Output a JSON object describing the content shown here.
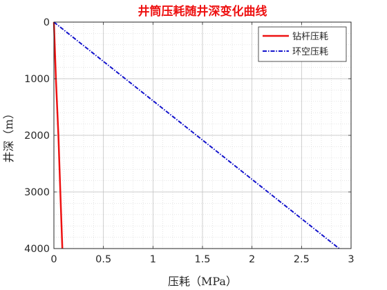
{
  "chart_data": {
    "type": "line",
    "title": "井筒压耗随井深变化曲线",
    "xlabel": "压耗（MPa）",
    "ylabel": "井深（m）",
    "xlim": [
      0,
      3
    ],
    "ylim": [
      0,
      4000
    ],
    "y_reversed": true,
    "x_ticks": [
      "0",
      "0.5",
      "1",
      "1.5",
      "2",
      "2.5",
      "3"
    ],
    "y_ticks": [
      "0",
      "1000",
      "2000",
      "3000",
      "4000"
    ],
    "grid": "major and minor, dotted",
    "legend_position": "top-right",
    "series": [
      {
        "name": "钻杆压耗",
        "color": "#ee1111",
        "style": "solid",
        "points": [
          [
            0.0,
            0
          ],
          [
            0.02,
            1000
          ],
          [
            0.045,
            2000
          ],
          [
            0.065,
            3000
          ],
          [
            0.085,
            4000
          ]
        ]
      },
      {
        "name": "环空压耗",
        "color": "#1111cc",
        "style": "dash-dot",
        "points": [
          [
            0.0,
            0
          ],
          [
            0.72,
            1000
          ],
          [
            1.44,
            2000
          ],
          [
            2.16,
            3000
          ],
          [
            2.88,
            4000
          ]
        ]
      }
    ]
  }
}
